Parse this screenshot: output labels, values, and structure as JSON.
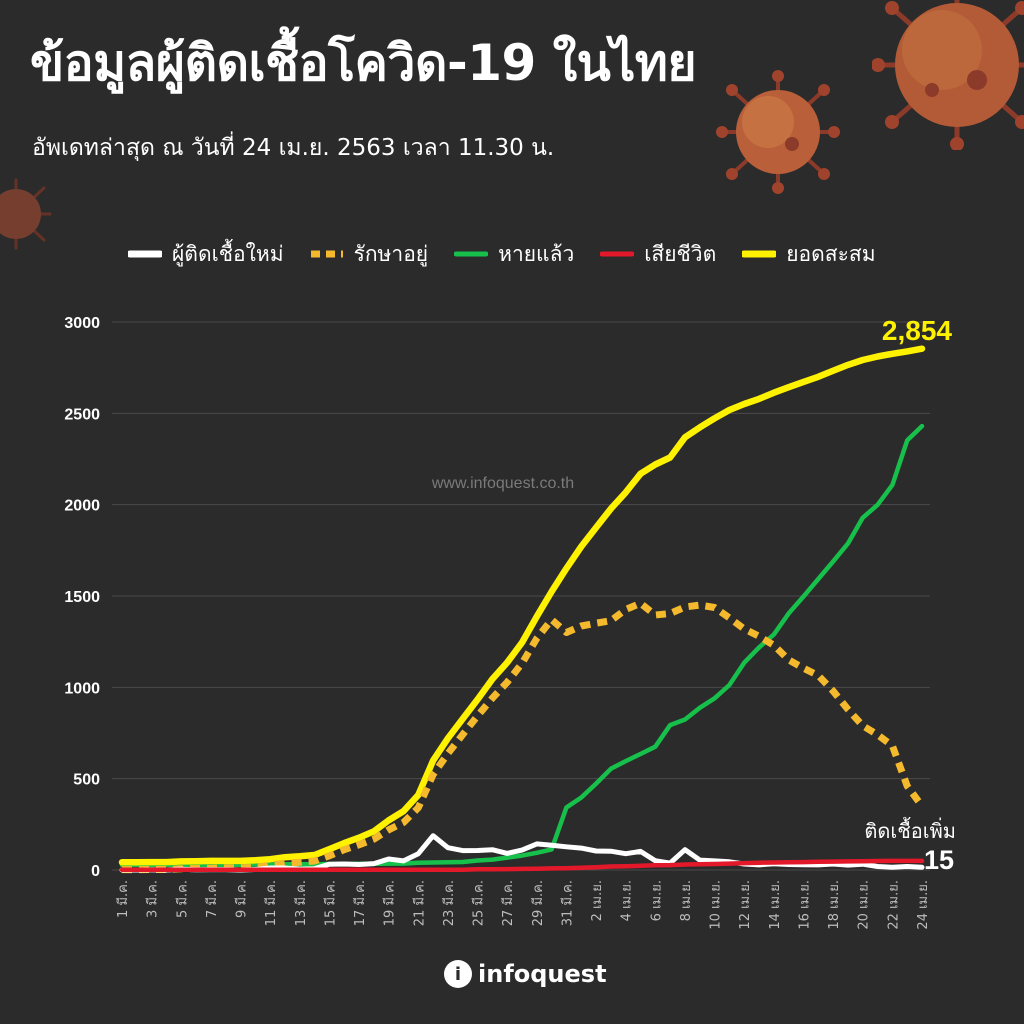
{
  "header": {
    "title": "ข้อมูลผู้ติดเชื้อโควิด-19 ในไทย",
    "subtitle": "อัพเดทล่าสุด ณ วันที่  24 เม.ย. 2563 เวลา 11.30 น."
  },
  "watermark": "www.infoquest.co.th",
  "logo": {
    "text": "infoquest",
    "mark": "i"
  },
  "colors": {
    "background": "#2b2b2b",
    "new_cases": "#ffffff",
    "active": "#f4b92c",
    "recovered": "#17c04b",
    "deaths": "#e3192b",
    "cumulative": "#fff200",
    "virus": "#a0432d"
  },
  "chart_data": {
    "type": "line",
    "x": [
      "1 มี.ค.",
      "2 มี.ค.",
      "3 มี.ค.",
      "4 มี.ค.",
      "5 มี.ค.",
      "6 มี.ค.",
      "7 มี.ค.",
      "8 มี.ค.",
      "9 มี.ค.",
      "10 มี.ค.",
      "11 มี.ค.",
      "12 มี.ค.",
      "13 มี.ค.",
      "14 มี.ค.",
      "15 มี.ค.",
      "16 มี.ค.",
      "17 มี.ค.",
      "18 มี.ค.",
      "19 มี.ค.",
      "20 มี.ค.",
      "21 มี.ค.",
      "22 มี.ค.",
      "23 มี.ค.",
      "24 มี.ค.",
      "25 มี.ค.",
      "26 มี.ค.",
      "27 มี.ค.",
      "28 มี.ค.",
      "29 มี.ค.",
      "30 มี.ค.",
      "31 มี.ค.",
      "1 เม.ย.",
      "2 เม.ย.",
      "3 เม.ย.",
      "4 เม.ย.",
      "5 เม.ย.",
      "6 เม.ย.",
      "7 เม.ย.",
      "8 เม.ย.",
      "9 เม.ย.",
      "10 เม.ย.",
      "11 เม.ย.",
      "12 เม.ย.",
      "13 เม.ย.",
      "14 เม.ย.",
      "15 เม.ย.",
      "16 เม.ย.",
      "17 เม.ย.",
      "18 เม.ย.",
      "19 เม.ย.",
      "20 เม.ย.",
      "21 เม.ย.",
      "22 เม.ย.",
      "23 เม.ย.",
      "24 เม.ย."
    ],
    "tick_labels": [
      "1 มี.ค.",
      "3 มี.ค.",
      "5 มี.ค.",
      "7 มี.ค.",
      "9 มี.ค.",
      "11 มี.ค.",
      "13 มี.ค.",
      "15 มี.ค.",
      "17 มี.ค.",
      "19 มี.ค.",
      "21 มี.ค.",
      "23 มี.ค.",
      "25 มี.ค.",
      "27 มี.ค.",
      "29 มี.ค.",
      "31 มี.ค.",
      "2 เม.ย.",
      "4 เม.ย.",
      "6 เม.ย.",
      "8 เม.ย.",
      "10 เม.ย.",
      "12 เม.ย.",
      "14 เม.ย.",
      "16 เม.ย.",
      "18 เม.ย.",
      "20 เม.ย.",
      "22 เม.ย.",
      "24 เม.ย."
    ],
    "y_ticks": [
      0,
      500,
      1000,
      1500,
      2000,
      2500,
      3000
    ],
    "ylim": [
      0,
      3000
    ],
    "grid": true,
    "legend_position": "top",
    "series": [
      {
        "name": "ผู้ติดเชื้อใหม่",
        "key": "new_cases",
        "style": "solid",
        "values": [
          0,
          0,
          1,
          0,
          4,
          1,
          2,
          2,
          0,
          3,
          11,
          11,
          5,
          7,
          32,
          33,
          30,
          35,
          60,
          50,
          89,
          188,
          122,
          106,
          107,
          111,
          91,
          109,
          143,
          136,
          127,
          120,
          104,
          103,
          89,
          102,
          51,
          38,
          111,
          54,
          50,
          45,
          33,
          28,
          34,
          30,
          29,
          28,
          33,
          27,
          32,
          19,
          15,
          19,
          15
        ]
      },
      {
        "name": "รักษาอยู่",
        "key": "active",
        "style": "dashed",
        "values": [
          2,
          2,
          3,
          3,
          7,
          8,
          10,
          12,
          12,
          15,
          26,
          37,
          42,
          49,
          78,
          111,
          138,
          169,
          220,
          260,
          341,
          522,
          638,
          741,
          844,
          941,
          1028,
          1131,
          1268,
          1371,
          1300,
          1336,
          1351,
          1365,
          1426,
          1460,
          1396,
          1404,
          1440,
          1450,
          1437,
          1380,
          1320,
          1280,
          1230,
          1150,
          1105,
          1065,
          980,
          880,
          790,
          740,
          680,
          460,
          350
        ]
      },
      {
        "name": "หายแล้ว",
        "key": "recovered",
        "style": "solid",
        "values": [
          28,
          28,
          28,
          28,
          28,
          28,
          28,
          28,
          28,
          30,
          31,
          31,
          31,
          32,
          33,
          33,
          34,
          34,
          35,
          35,
          40,
          41,
          42,
          44,
          52,
          57,
          68,
          79,
          94,
          113,
          342,
          397,
          473,
          554,
          596,
          635,
          675,
          793,
          824,
          888,
          940,
          1013,
          1135,
          1218,
          1290,
          1405,
          1497,
          1593,
          1689,
          1787,
          1928,
          1999,
          2108,
          2352,
          2430
        ]
      },
      {
        "name": "เสียชีวิต",
        "key": "deaths",
        "style": "solid",
        "values": [
          1,
          1,
          1,
          1,
          1,
          1,
          1,
          1,
          1,
          1,
          1,
          1,
          1,
          1,
          1,
          1,
          1,
          1,
          1,
          1,
          1,
          1,
          1,
          1,
          4,
          4,
          5,
          6,
          7,
          9,
          10,
          12,
          15,
          19,
          20,
          23,
          26,
          27,
          30,
          32,
          33,
          35,
          38,
          40,
          41,
          42,
          43,
          45,
          46,
          47,
          48,
          49,
          50,
          50,
          50
        ]
      },
      {
        "name": "ยอดสะสม",
        "key": "cumulative",
        "style": "solid",
        "values": [
          42,
          42,
          43,
          43,
          47,
          48,
          50,
          50,
          50,
          53,
          59,
          70,
          75,
          82,
          114,
          147,
          177,
          212,
          272,
          322,
          411,
          599,
          721,
          827,
          934,
          1045,
          1136,
          1245,
          1388,
          1524,
          1651,
          1771,
          1875,
          1978,
          2067,
          2169,
          2220,
          2258,
          2369,
          2423,
          2473,
          2518,
          2551,
          2579,
          2613,
          2643,
          2672,
          2700,
          2733,
          2765,
          2792,
          2811,
          2826,
          2839,
          2854
        ]
      }
    ],
    "annotations": {
      "cumulative_label": "2,854",
      "new_cases_caption": "ติดเชื้อเพิ่ม",
      "new_cases_value": "15"
    }
  }
}
